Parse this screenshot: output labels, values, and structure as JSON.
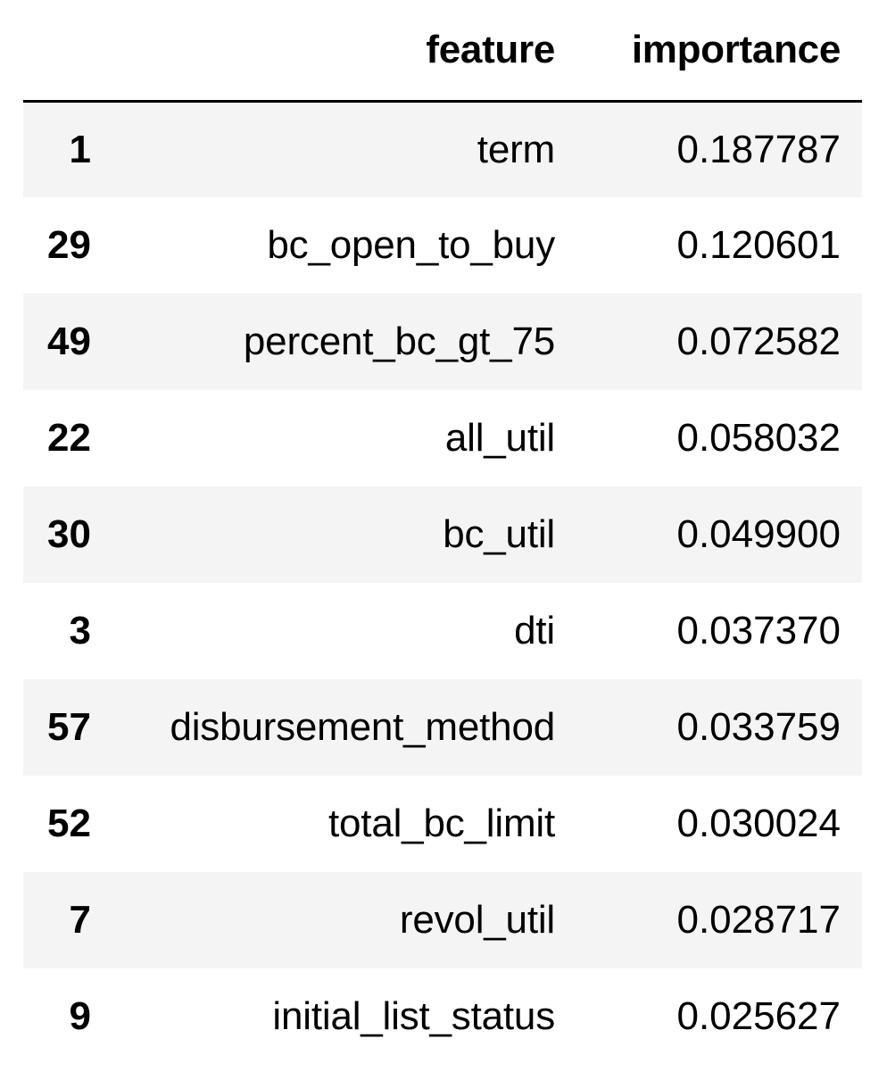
{
  "table": {
    "columns": {
      "index": "",
      "feature": "feature",
      "importance": "importance"
    },
    "rows": [
      {
        "index": "1",
        "feature": "term",
        "importance": "0.187787"
      },
      {
        "index": "29",
        "feature": "bc_open_to_buy",
        "importance": "0.120601"
      },
      {
        "index": "49",
        "feature": "percent_bc_gt_75",
        "importance": "0.072582"
      },
      {
        "index": "22",
        "feature": "all_util",
        "importance": "0.058032"
      },
      {
        "index": "30",
        "feature": "bc_util",
        "importance": "0.049900"
      },
      {
        "index": "3",
        "feature": "dti",
        "importance": "0.037370"
      },
      {
        "index": "57",
        "feature": "disbursement_method",
        "importance": "0.033759"
      },
      {
        "index": "52",
        "feature": "total_bc_limit",
        "importance": "0.030024"
      },
      {
        "index": "7",
        "feature": "revol_util",
        "importance": "0.028717"
      },
      {
        "index": "9",
        "feature": "initial_list_status",
        "importance": "0.025627"
      }
    ]
  }
}
